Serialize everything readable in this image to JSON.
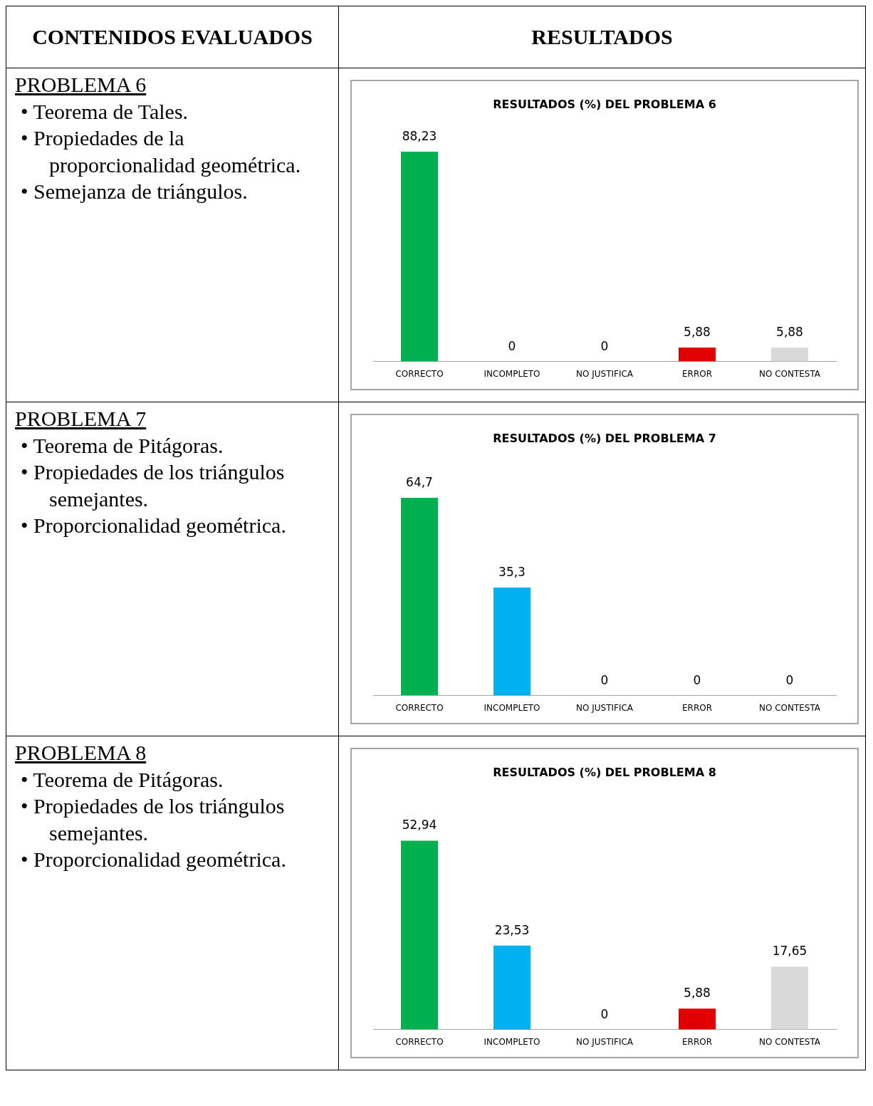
{
  "chart_data": [
    {
      "type": "other",
      "annotations": [
        "CONTENIDOS EVALUADOS",
        "RESULTADOS"
      ]
    },
    {
      "type": "other",
      "title": "PROBLEMA 6",
      "annotations": [
        "• Teorema de Tales.",
        "• Propiedades de la proporcionalidad geométrica.",
        "• Semejanza de triángulos."
      ]
    },
    {
      "type": "bar",
      "title": "RESULTADOS (%) DEL PROBLEMA 6",
      "categories": [
        "CORRECTO",
        "INCOMPLETO",
        "NO JUSTIFICA",
        "ERROR",
        "NO CONTESTA"
      ],
      "values": [
        88.23,
        0,
        0,
        5.88,
        5.88
      ],
      "value_labels": [
        "88,23",
        "0",
        "0",
        "5,88",
        "5,88"
      ],
      "colors": [
        "#00b050",
        "#00a0d8",
        "#c8c800",
        "#e00000",
        "#d9d9d9"
      ]
    },
    {
      "type": "other",
      "title": "PROBLEMA 7",
      "annotations": [
        "• Teorema de Pitágoras.",
        "• Propiedades de los triángulos semejantes.",
        "• Proporcionalidad geométrica."
      ]
    },
    {
      "type": "bar",
      "title": "RESULTADOS (%) DEL PROBLEMA 7",
      "categories": [
        "CORRECTO",
        "INCOMPLETO",
        "NO JUSTIFICA",
        "ERROR",
        "NO CONTESTA"
      ],
      "values": [
        64.7,
        35.3,
        0,
        0,
        0
      ],
      "value_labels": [
        "64,7",
        "35,3",
        "0",
        "0",
        "0"
      ],
      "colors": [
        "#00b050",
        "#00b0f0",
        "#c8c800",
        "#e00000",
        "#d9d9d9"
      ]
    },
    {
      "type": "other",
      "title": "PROBLEMA 8",
      "annotations": [
        "• Teorema de Pitágoras.",
        "• Propiedades de los triángulos semejantes.",
        "• Proporcionalidad geométrica."
      ]
    },
    {
      "type": "bar",
      "title": "RESULTADOS (%) DEL PROBLEMA 8",
      "categories": [
        "CORRECTO",
        "INCOMPLETO",
        "NO JUSTIFICA",
        "ERROR",
        "NO CONTESTA"
      ],
      "values": [
        52.94,
        23.53,
        0,
        5.88,
        17.65
      ],
      "value_labels": [
        "52,94",
        "23,53",
        "0",
        "5,88",
        "17,65"
      ],
      "colors": [
        "#00b050",
        "#00b0f0",
        "#c8c800",
        "#e00000",
        "#d9d9d9"
      ]
    }
  ]
}
